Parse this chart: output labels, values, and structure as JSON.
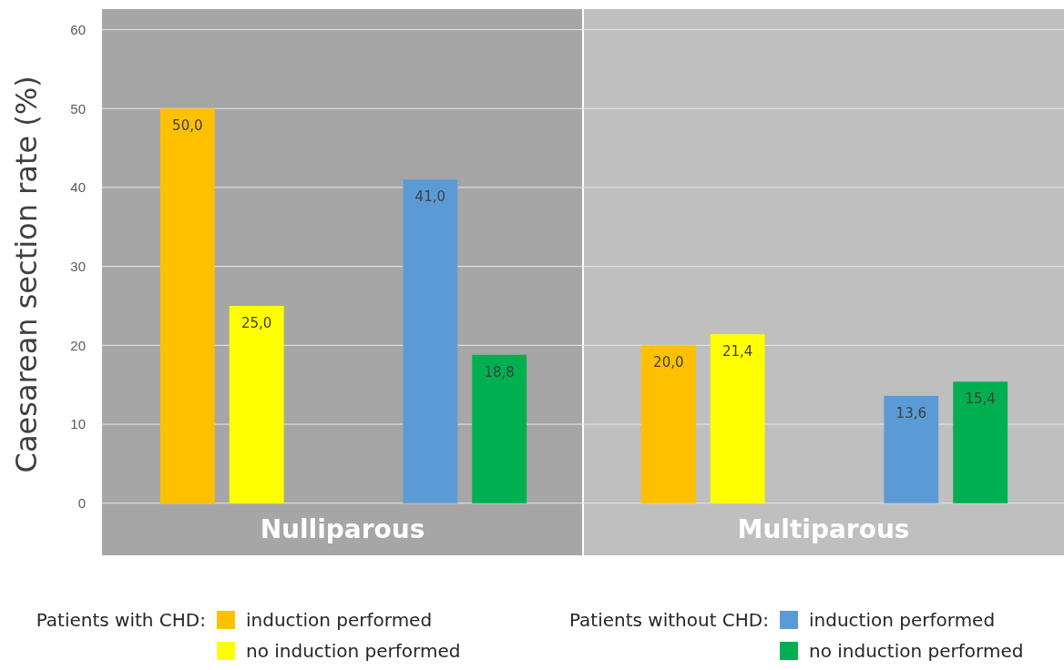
{
  "chart_data": {
    "type": "bar",
    "ylabel": "Caesarean section rate (%)",
    "categories": [
      "Nulliparous",
      "Multiparous"
    ],
    "series": [
      {
        "name": "induction performed",
        "color": "#ffc000",
        "values": [
          50.0,
          20.0
        ],
        "value_labels": [
          "50,0",
          "20,0"
        ]
      },
      {
        "name": "no induction performed",
        "color": "#ffff00",
        "values": [
          25.0,
          21.4
        ],
        "value_labels": [
          "25,0",
          "21,4"
        ]
      },
      {
        "name": "induction performed",
        "color": "#5b9bd5",
        "values": [
          41.0,
          13.6
        ],
        "value_labels": [
          "41,0",
          "13,6"
        ]
      },
      {
        "name": "no induction performed",
        "color": "#00b050",
        "values": [
          18.8,
          15.4
        ],
        "value_labels": [
          "18,8",
          "15,4"
        ]
      }
    ],
    "ylim": [
      -6.6,
      62.6
    ],
    "yticks": [
      0,
      10,
      20,
      30,
      40,
      50,
      60
    ],
    "grid": "y",
    "legend": "bottom",
    "annotations": [
      "Patients with CHD:",
      "Patients without CHD:"
    ]
  }
}
